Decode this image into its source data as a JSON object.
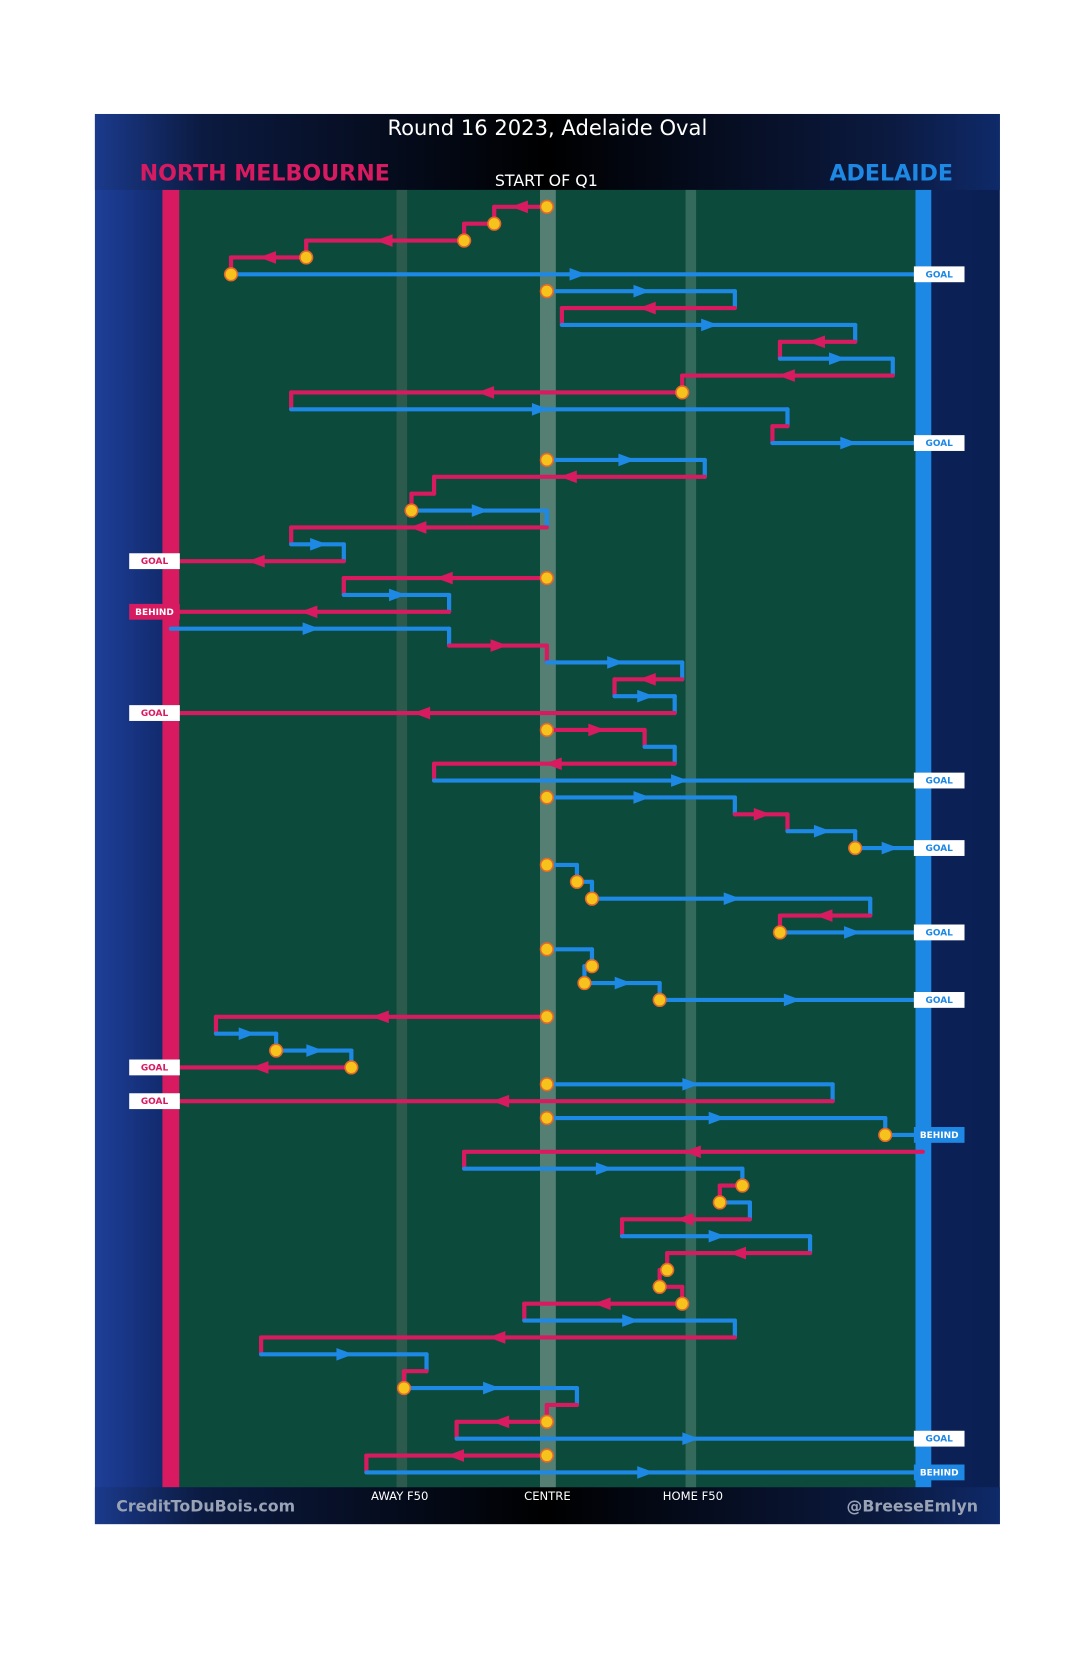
{
  "title": "Round 16 2023, Adelaide Oval",
  "subtitle": "START OF Q1",
  "teams": [
    {
      "name": "NORTH MELBOURNE",
      "color": "#d81b60"
    },
    {
      "name": "ADELAIDE",
      "color": "#1e88e5"
    }
  ],
  "zones": {
    "away": "AWAY F50",
    "centre": "CENTRE",
    "home": "HOME F50"
  },
  "credit_left": "CreditToDuBois.com",
  "credit_right": "@BreeseEmlyn",
  "segments": [
    {
      "team": 0,
      "from": 50,
      "to": 43,
      "stop": true
    },
    {
      "team": 0,
      "from": 43,
      "to": 39,
      "stop": true
    },
    {
      "team": 0,
      "from": 39,
      "to": 18,
      "stop": true
    },
    {
      "team": 0,
      "from": 18,
      "to": 8,
      "stop": true
    },
    {
      "team": 1,
      "from": 8,
      "to": 100,
      "stop": true,
      "outcome": "GOAL"
    },
    {
      "team": 1,
      "from": 50,
      "to": 75,
      "stop": true
    },
    {
      "team": 0,
      "from": 75,
      "to": 52
    },
    {
      "team": 1,
      "from": 52,
      "to": 91
    },
    {
      "team": 0,
      "from": 91,
      "to": 81
    },
    {
      "team": 1,
      "from": 81,
      "to": 96
    },
    {
      "team": 0,
      "from": 96,
      "to": 68
    },
    {
      "team": 0,
      "from": 68,
      "to": 16,
      "stop": true
    },
    {
      "team": 1,
      "from": 16,
      "to": 82
    },
    {
      "team": 0,
      "from": 82,
      "to": 80
    },
    {
      "team": 1,
      "from": 80,
      "to": 100,
      "outcome": "GOAL"
    },
    {
      "team": 1,
      "from": 50,
      "to": 71,
      "stop": true
    },
    {
      "team": 0,
      "from": 71,
      "to": 35
    },
    {
      "team": 0,
      "from": 35,
      "to": 32
    },
    {
      "team": 1,
      "from": 32,
      "to": 50,
      "stop": true
    },
    {
      "team": 0,
      "from": 50,
      "to": 16
    },
    {
      "team": 1,
      "from": 16,
      "to": 23
    },
    {
      "team": 0,
      "from": 23,
      "to": 0,
      "outcome": "GOAL"
    },
    {
      "team": 0,
      "from": 50,
      "to": 23,
      "stop": true
    },
    {
      "team": 1,
      "from": 23,
      "to": 37
    },
    {
      "team": 0,
      "from": 37,
      "to": 0,
      "outcome": "BEHIND"
    },
    {
      "team": 1,
      "from": 0,
      "to": 37
    },
    {
      "team": 0,
      "from": 37,
      "to": 50
    },
    {
      "team": 1,
      "from": 50,
      "to": 68
    },
    {
      "team": 0,
      "from": 68,
      "to": 59
    },
    {
      "team": 1,
      "from": 59,
      "to": 67
    },
    {
      "team": 0,
      "from": 67,
      "to": 0,
      "outcome": "GOAL"
    },
    {
      "team": 0,
      "from": 50,
      "to": 63,
      "stop": true
    },
    {
      "team": 1,
      "from": 63,
      "to": 67
    },
    {
      "team": 0,
      "from": 67,
      "to": 35
    },
    {
      "team": 1,
      "from": 35,
      "to": 100,
      "outcome": "GOAL"
    },
    {
      "team": 1,
      "from": 50,
      "to": 75,
      "stop": true
    },
    {
      "team": 0,
      "from": 75,
      "to": 82
    },
    {
      "team": 1,
      "from": 82,
      "to": 91
    },
    {
      "team": 1,
      "from": 91,
      "to": 100,
      "stop": true,
      "outcome": "GOAL"
    },
    {
      "team": 1,
      "from": 50,
      "to": 54,
      "stop": true
    },
    {
      "team": 1,
      "from": 54,
      "to": 56,
      "stop": true
    },
    {
      "team": 1,
      "from": 56,
      "to": 93,
      "stop": true
    },
    {
      "team": 0,
      "from": 93,
      "to": 81
    },
    {
      "team": 1,
      "from": 81,
      "to": 100,
      "stop": true,
      "outcome": "GOAL"
    },
    {
      "team": 1,
      "from": 50,
      "to": 56,
      "stop": true
    },
    {
      "team": 1,
      "from": 56,
      "to": 55,
      "stop": true
    },
    {
      "team": 1,
      "from": 55,
      "to": 65,
      "stop": true
    },
    {
      "team": 1,
      "from": 65,
      "to": 100,
      "stop": true,
      "outcome": "GOAL"
    },
    {
      "team": 0,
      "from": 50,
      "to": 6,
      "stop": true
    },
    {
      "team": 1,
      "from": 6,
      "to": 14
    },
    {
      "team": 1,
      "from": 14,
      "to": 24,
      "stop": true
    },
    {
      "team": 0,
      "from": 24,
      "to": 0,
      "stop": true,
      "outcome": "GOAL"
    },
    {
      "team": 1,
      "from": 50,
      "to": 88,
      "stop": true
    },
    {
      "team": 0,
      "from": 88,
      "to": 0,
      "outcome": "GOAL"
    },
    {
      "team": 1,
      "from": 50,
      "to": 95,
      "stop": true
    },
    {
      "team": 1,
      "from": 95,
      "to": 100,
      "stop": true,
      "outcome": "BEHIND"
    },
    {
      "team": 0,
      "from": 100,
      "to": 39
    },
    {
      "team": 1,
      "from": 39,
      "to": 76
    },
    {
      "team": 0,
      "from": 76,
      "to": 73,
      "stop": true
    },
    {
      "team": 1,
      "from": 73,
      "to": 77,
      "stop": true
    },
    {
      "team": 0,
      "from": 77,
      "to": 60
    },
    {
      "team": 1,
      "from": 60,
      "to": 85
    },
    {
      "team": 0,
      "from": 85,
      "to": 66
    },
    {
      "team": 0,
      "from": 66,
      "to": 65,
      "stop": true
    },
    {
      "team": 0,
      "from": 65,
      "to": 68,
      "stop": true
    },
    {
      "team": 0,
      "from": 68,
      "to": 47,
      "stop": true
    },
    {
      "team": 1,
      "from": 47,
      "to": 75
    },
    {
      "team": 0,
      "from": 75,
      "to": 12
    },
    {
      "team": 1,
      "from": 12,
      "to": 34
    },
    {
      "team": 0,
      "from": 34,
      "to": 31
    },
    {
      "team": 1,
      "from": 31,
      "to": 54,
      "stop": true
    },
    {
      "team": 0,
      "from": 54,
      "to": 50
    },
    {
      "team": 0,
      "from": 50,
      "to": 38,
      "stop": true
    },
    {
      "team": 1,
      "from": 38,
      "to": 100,
      "outcome": "GOAL"
    },
    {
      "team": 0,
      "from": 50,
      "to": 26,
      "stop": true
    },
    {
      "team": 1,
      "from": 26,
      "to": 100,
      "outcome": "BEHIND"
    }
  ]
}
